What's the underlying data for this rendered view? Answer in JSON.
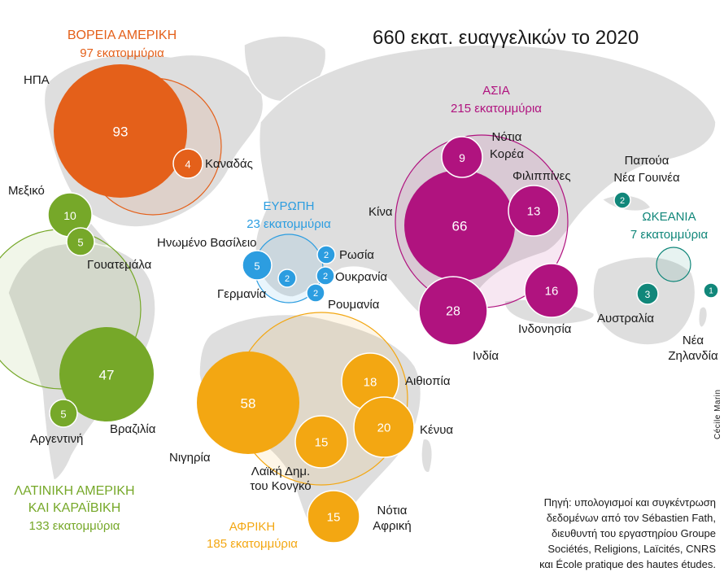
{
  "title": "660 εκατ. ευαγγελικών το 2020",
  "colors": {
    "north_america": "#e4601a",
    "latin_america": "#76a829",
    "europe": "#2c9de0",
    "africa": "#f3a712",
    "asia": "#b0137f",
    "oceania": "#11877a",
    "land": "#dedede",
    "text": "#1a1a1a"
  },
  "regions": {
    "north_america": {
      "name": "ΒΟΡΕΙΑ ΑΜΕΡΙΚΗ",
      "total": "97 εκατομμύρια"
    },
    "latin_america": {
      "name_line1": "ΛΑΤΙΝΙΚΗ ΑΜΕΡΙΚΗ",
      "name_line2": "ΚΑΙ ΚΑΡΑΪΒΙΚΗ",
      "total": "133 εκατομμύρια"
    },
    "europe": {
      "name": "ΕΥΡΩΠΗ",
      "total": "23 εκατομμύρια"
    },
    "africa": {
      "name": "ΑΦΡΙΚΗ",
      "total": "185 εκατομμύρια"
    },
    "asia": {
      "name": "ΑΣΙΑ",
      "total": "215 εκατομμύρια"
    },
    "oceania": {
      "name": "ΩΚΕΑΝΙΑ",
      "total": "7 εκατομμύρια"
    }
  },
  "countries": {
    "usa": {
      "label": "ΗΠΑ",
      "value": "93"
    },
    "canada": {
      "label": "Καναδάς",
      "value": "4"
    },
    "mexico": {
      "label": "Μεξικό",
      "value": "10"
    },
    "guatemala": {
      "label": "Γουατεμάλα",
      "value": "5"
    },
    "brazil": {
      "label": "Βραζιλία",
      "value": "47"
    },
    "argentina": {
      "label": "Αργεντινή",
      "value": "5"
    },
    "uk": {
      "label": "Ηνωμένο Βασίλειο",
      "value": "5"
    },
    "germany": {
      "label": "Γερμανία",
      "value": "2"
    },
    "russia": {
      "label": "Ρωσία",
      "value": "2"
    },
    "ukraine": {
      "label": "Ουκρανία",
      "value": "2"
    },
    "romania": {
      "label": "Ρουμανία",
      "value": "2"
    },
    "nigeria": {
      "label": "Νιγηρία",
      "value": "58"
    },
    "drc": {
      "label_line1": "Λαϊκή Δημ.",
      "label_line2": "του Κονγκό",
      "value": "15"
    },
    "ethiopia": {
      "label": "Αιθιοπία",
      "value": "18"
    },
    "kenya": {
      "label": "Κένυα",
      "value": "20"
    },
    "south_africa": {
      "label_line1": "Νότια",
      "label_line2": "Αφρική",
      "value": "15"
    },
    "china": {
      "label": "Κίνα",
      "value": "66"
    },
    "south_korea": {
      "label_line1": "Νότια",
      "label_line2": "Κορέα",
      "value": "9"
    },
    "philippines": {
      "label": "Φιλιππίνες",
      "value": "13"
    },
    "indonesia": {
      "label": "Ινδονησία",
      "value": "16"
    },
    "india": {
      "label": "Ινδία",
      "value": "28"
    },
    "papua_new_guinea": {
      "label_line1": "Παπούα",
      "label_line2": "Νέα Γουινέα",
      "value": "2"
    },
    "australia": {
      "label": "Αυστραλία",
      "value": "3"
    },
    "new_zealand": {
      "label_line1": "Νέα",
      "label_line2": "Ζηλανδία",
      "value": "1"
    }
  },
  "source": {
    "line1": "Πηγή: υπολογισμοί και συγκέντρωση",
    "line2": "δεδομένων από τον Sébastien Fath,",
    "line3": "διευθυντή του εργαστηρίου Groupe",
    "line4": "Sociétés, Religions, Laïcités, CNRS",
    "line5": "και École pratique des hautes études."
  },
  "credit": "Cécile Marin"
}
